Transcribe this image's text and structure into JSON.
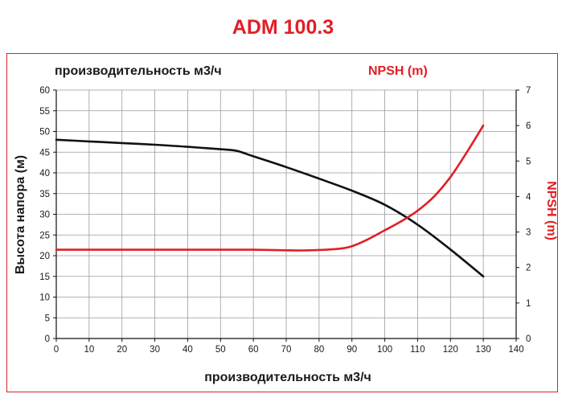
{
  "title": "ADM 100.3",
  "chart_data": {
    "type": "line",
    "top_left_label": "производительность м3/ч",
    "top_right_label": "NPSH (m)",
    "xlabel": "производительность м3/ч",
    "ylabel": "Высота напора (м)",
    "y2label": "NPSH (m)",
    "xlim": [
      0,
      140
    ],
    "ylim": [
      0,
      60
    ],
    "y2lim": [
      0,
      7
    ],
    "x_ticks": [
      0,
      10,
      20,
      30,
      40,
      50,
      60,
      70,
      80,
      90,
      100,
      110,
      120,
      130,
      140
    ],
    "y_ticks": [
      0,
      5,
      10,
      15,
      20,
      25,
      30,
      35,
      40,
      45,
      50,
      55,
      60
    ],
    "y2_ticks": [
      0,
      1,
      2,
      3,
      4,
      5,
      6,
      7
    ],
    "grid": true,
    "series": [
      {
        "axis": "left",
        "color": "#111111",
        "x": [
          0,
          10,
          20,
          30,
          40,
          50,
          55,
          60,
          70,
          80,
          90,
          100,
          110,
          120,
          130
        ],
        "y": [
          48,
          47.6,
          47.2,
          46.8,
          46.3,
          45.7,
          45.3,
          44.0,
          41.4,
          38.6,
          35.7,
          32.3,
          27.5,
          21.5,
          15
        ]
      },
      {
        "axis": "right",
        "color": "#e21e26",
        "x": [
          0,
          20,
          40,
          60,
          75,
          85,
          90,
          95,
          100,
          105,
          110,
          115,
          120,
          125,
          130
        ],
        "y": [
          2.5,
          2.5,
          2.5,
          2.5,
          2.48,
          2.52,
          2.6,
          2.8,
          3.05,
          3.3,
          3.6,
          4.0,
          4.55,
          5.25,
          6.0
        ]
      }
    ]
  }
}
